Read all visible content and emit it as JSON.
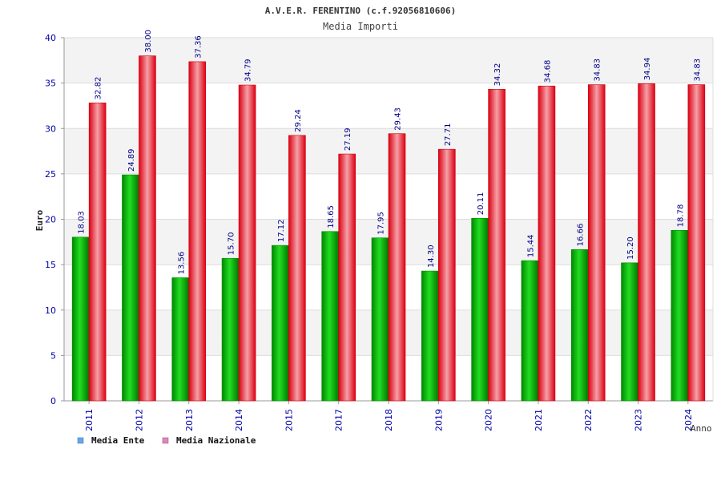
{
  "chart_data": {
    "type": "bar",
    "title": "A.V.E.R. FERENTINO (c.f.92056810606)",
    "subtitle": "Media Importi",
    "xlabel": "Anno",
    "ylabel": "Euro",
    "ylim": [
      0,
      40
    ],
    "yticks": [
      0,
      5,
      10,
      15,
      20,
      25,
      30,
      35,
      40
    ],
    "grid": true,
    "legend_position": "bottom-left",
    "categories": [
      "2011",
      "2012",
      "2013",
      "2014",
      "2015",
      "2017",
      "2018",
      "2019",
      "2020",
      "2021",
      "2022",
      "2023",
      "2024"
    ],
    "series": [
      {
        "name": "Media Ente",
        "legend_color": "#66aaee",
        "bar_color": "#00bb00",
        "values": [
          18.03,
          24.89,
          13.56,
          15.7,
          17.12,
          18.65,
          17.95,
          14.3,
          20.11,
          15.44,
          16.66,
          15.2,
          18.78
        ],
        "labels": [
          "18.03",
          "24.89",
          "13.56",
          "15.70",
          "17.12",
          "18.65",
          "17.95",
          "14.30",
          "20.11",
          "15.44",
          "16.66",
          "15.20",
          "18.78"
        ]
      },
      {
        "name": "Media Nazionale",
        "legend_color": "#dd88bb",
        "bar_color": "#ee1122",
        "values": [
          32.82,
          38.0,
          37.36,
          34.79,
          29.24,
          27.19,
          29.43,
          27.71,
          34.32,
          34.68,
          34.83,
          34.94,
          34.83
        ],
        "labels": [
          "32.82",
          "38.00",
          "37.36",
          "34.79",
          "29.24",
          "27.19",
          "29.43",
          "27.71",
          "34.32",
          "34.68",
          "34.83",
          "34.94",
          "34.83"
        ]
      }
    ]
  }
}
